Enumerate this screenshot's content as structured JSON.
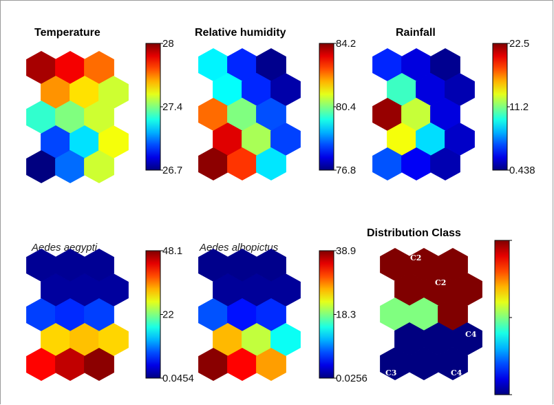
{
  "chart_data": [
    {
      "type": "heatmap",
      "title": "Temperature",
      "colorbar": {
        "min": 26.7,
        "max": 28,
        "tick_labels": [
          "28",
          "27.4",
          "26.7"
        ]
      },
      "cells": [
        [
          27.95,
          27.85,
          27.7
        ],
        [
          27.65,
          27.55,
          27.45
        ],
        [
          27.25,
          27.35,
          27.45
        ],
        [
          26.95,
          27.15,
          27.5
        ],
        [
          26.7,
          27.0,
          27.45
        ]
      ]
    },
    {
      "type": "heatmap",
      "title": "Relative humidity",
      "colorbar": {
        "min": 76.8,
        "max": 84.2,
        "tick_labels": [
          "84.2",
          "80.4",
          "76.8"
        ]
      },
      "cells": [
        [
          79.5,
          78.0,
          76.9
        ],
        [
          79.6,
          78.0,
          77.1
        ],
        [
          82.5,
          80.5,
          78.3
        ],
        [
          83.5,
          80.8,
          78.2
        ],
        [
          84.1,
          82.9,
          79.4
        ]
      ]
    },
    {
      "type": "heatmap",
      "title": "Rainfall",
      "colorbar": {
        "min": 0.438,
        "max": 22.5,
        "tick_labels": [
          "22.5",
          "11.2",
          "0.438"
        ]
      },
      "cells": [
        [
          4.0,
          2.5,
          0.8
        ],
        [
          10.0,
          2.5,
          1.5
        ],
        [
          22.0,
          13.0,
          2.5
        ],
        [
          14.0,
          8.0,
          2.0
        ],
        [
          5.0,
          3.0,
          1.5
        ]
      ]
    },
    {
      "type": "heatmap",
      "title": "Aedes aegypti",
      "colorbar": {
        "min": 0.0454,
        "max": 48.1,
        "tick_labels": [
          "48.1",
          "22",
          "0.0454"
        ]
      },
      "cells": [
        [
          1.0,
          1.0,
          1.0
        ],
        [
          1.5,
          1.5,
          1.5
        ],
        [
          9.0,
          8.0,
          9.0
        ],
        [
          32.0,
          33.0,
          32.0
        ],
        [
          42.0,
          45.0,
          47.5
        ]
      ]
    },
    {
      "type": "heatmap",
      "title": "Aedes albopictus",
      "colorbar": {
        "min": 0.0256,
        "max": 38.9,
        "tick_labels": [
          "38.9",
          "18.3",
          "0.0256"
        ]
      },
      "cells": [
        [
          0.5,
          0.5,
          0.5
        ],
        [
          1.0,
          1.0,
          1.0
        ],
        [
          8.0,
          5.5,
          6.5
        ],
        [
          27.0,
          22.0,
          15.0
        ],
        [
          38.5,
          34.0,
          28.0
        ]
      ]
    },
    {
      "type": "heatmap",
      "title": "Distribution Class",
      "colorbar": {
        "min": 0,
        "max": 1,
        "tick_labels": []
      },
      "cells": [
        [
          1.0,
          1.0,
          1.0
        ],
        [
          1.0,
          1.0,
          1.0
        ],
        [
          0.5,
          0.5,
          1.0
        ],
        [
          0.0,
          0.0,
          0.0
        ],
        [
          0.0,
          0.0,
          0.0
        ]
      ],
      "annotations": [
        "C2",
        "C2",
        "C4",
        "C3",
        "C4"
      ]
    }
  ]
}
